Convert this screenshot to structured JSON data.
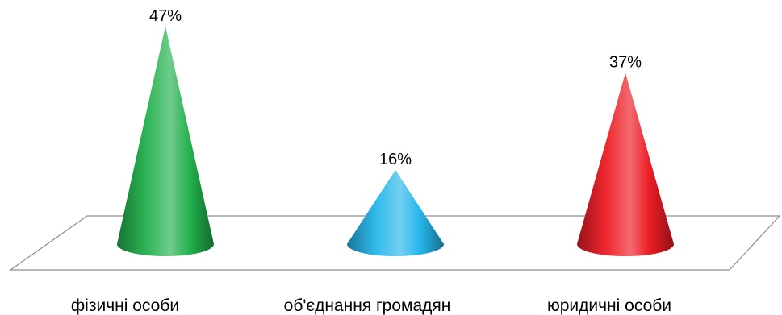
{
  "chart_data": {
    "type": "bar",
    "style": "3d-cone",
    "categories": [
      "фізичні особи",
      "об'єднання громадян",
      "юридичні особи"
    ],
    "values": [
      47,
      16,
      37
    ],
    "value_labels": [
      "47%",
      "16%",
      "37%"
    ],
    "unit": "%",
    "colors": [
      "#22b14c",
      "#26b6ea",
      "#ec1c24"
    ],
    "ylim": [
      0,
      50
    ],
    "grid": false,
    "legend": "none"
  }
}
